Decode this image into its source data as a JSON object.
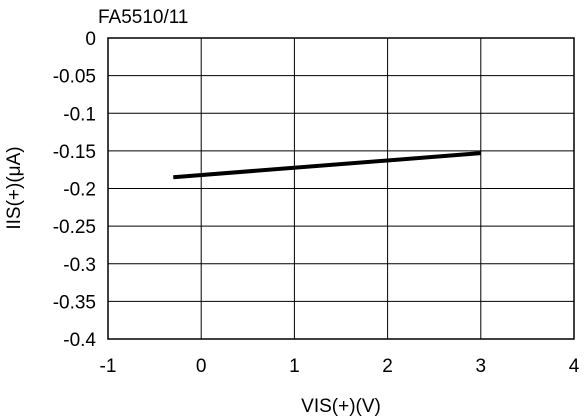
{
  "chart_data": {
    "type": "line",
    "title": "FA5510/11",
    "xlabel": "VIS(+)(V)",
    "ylabel": "IIS(+)(μA)",
    "xlim": [
      -1,
      4
    ],
    "ylim": [
      -0.4,
      0
    ],
    "xticks": [
      -1,
      0,
      1,
      2,
      3,
      4
    ],
    "yticks": [
      0,
      -0.05,
      -0.1,
      -0.15,
      -0.2,
      -0.25,
      -0.3,
      -0.35,
      -0.4
    ],
    "xtick_labels": [
      "-1",
      "0",
      "1",
      "2",
      "3",
      "4"
    ],
    "ytick_labels": [
      "0",
      "-0.05",
      "-0.1",
      "-0.15",
      "-0.2",
      "-0.25",
      "-0.3",
      "-0.35",
      "-0.4"
    ],
    "grid": true,
    "legend": "none",
    "series": [
      {
        "x": [
          -0.3,
          3
        ],
        "y": [
          -0.185,
          -0.153
        ],
        "color": "#000000"
      }
    ]
  }
}
